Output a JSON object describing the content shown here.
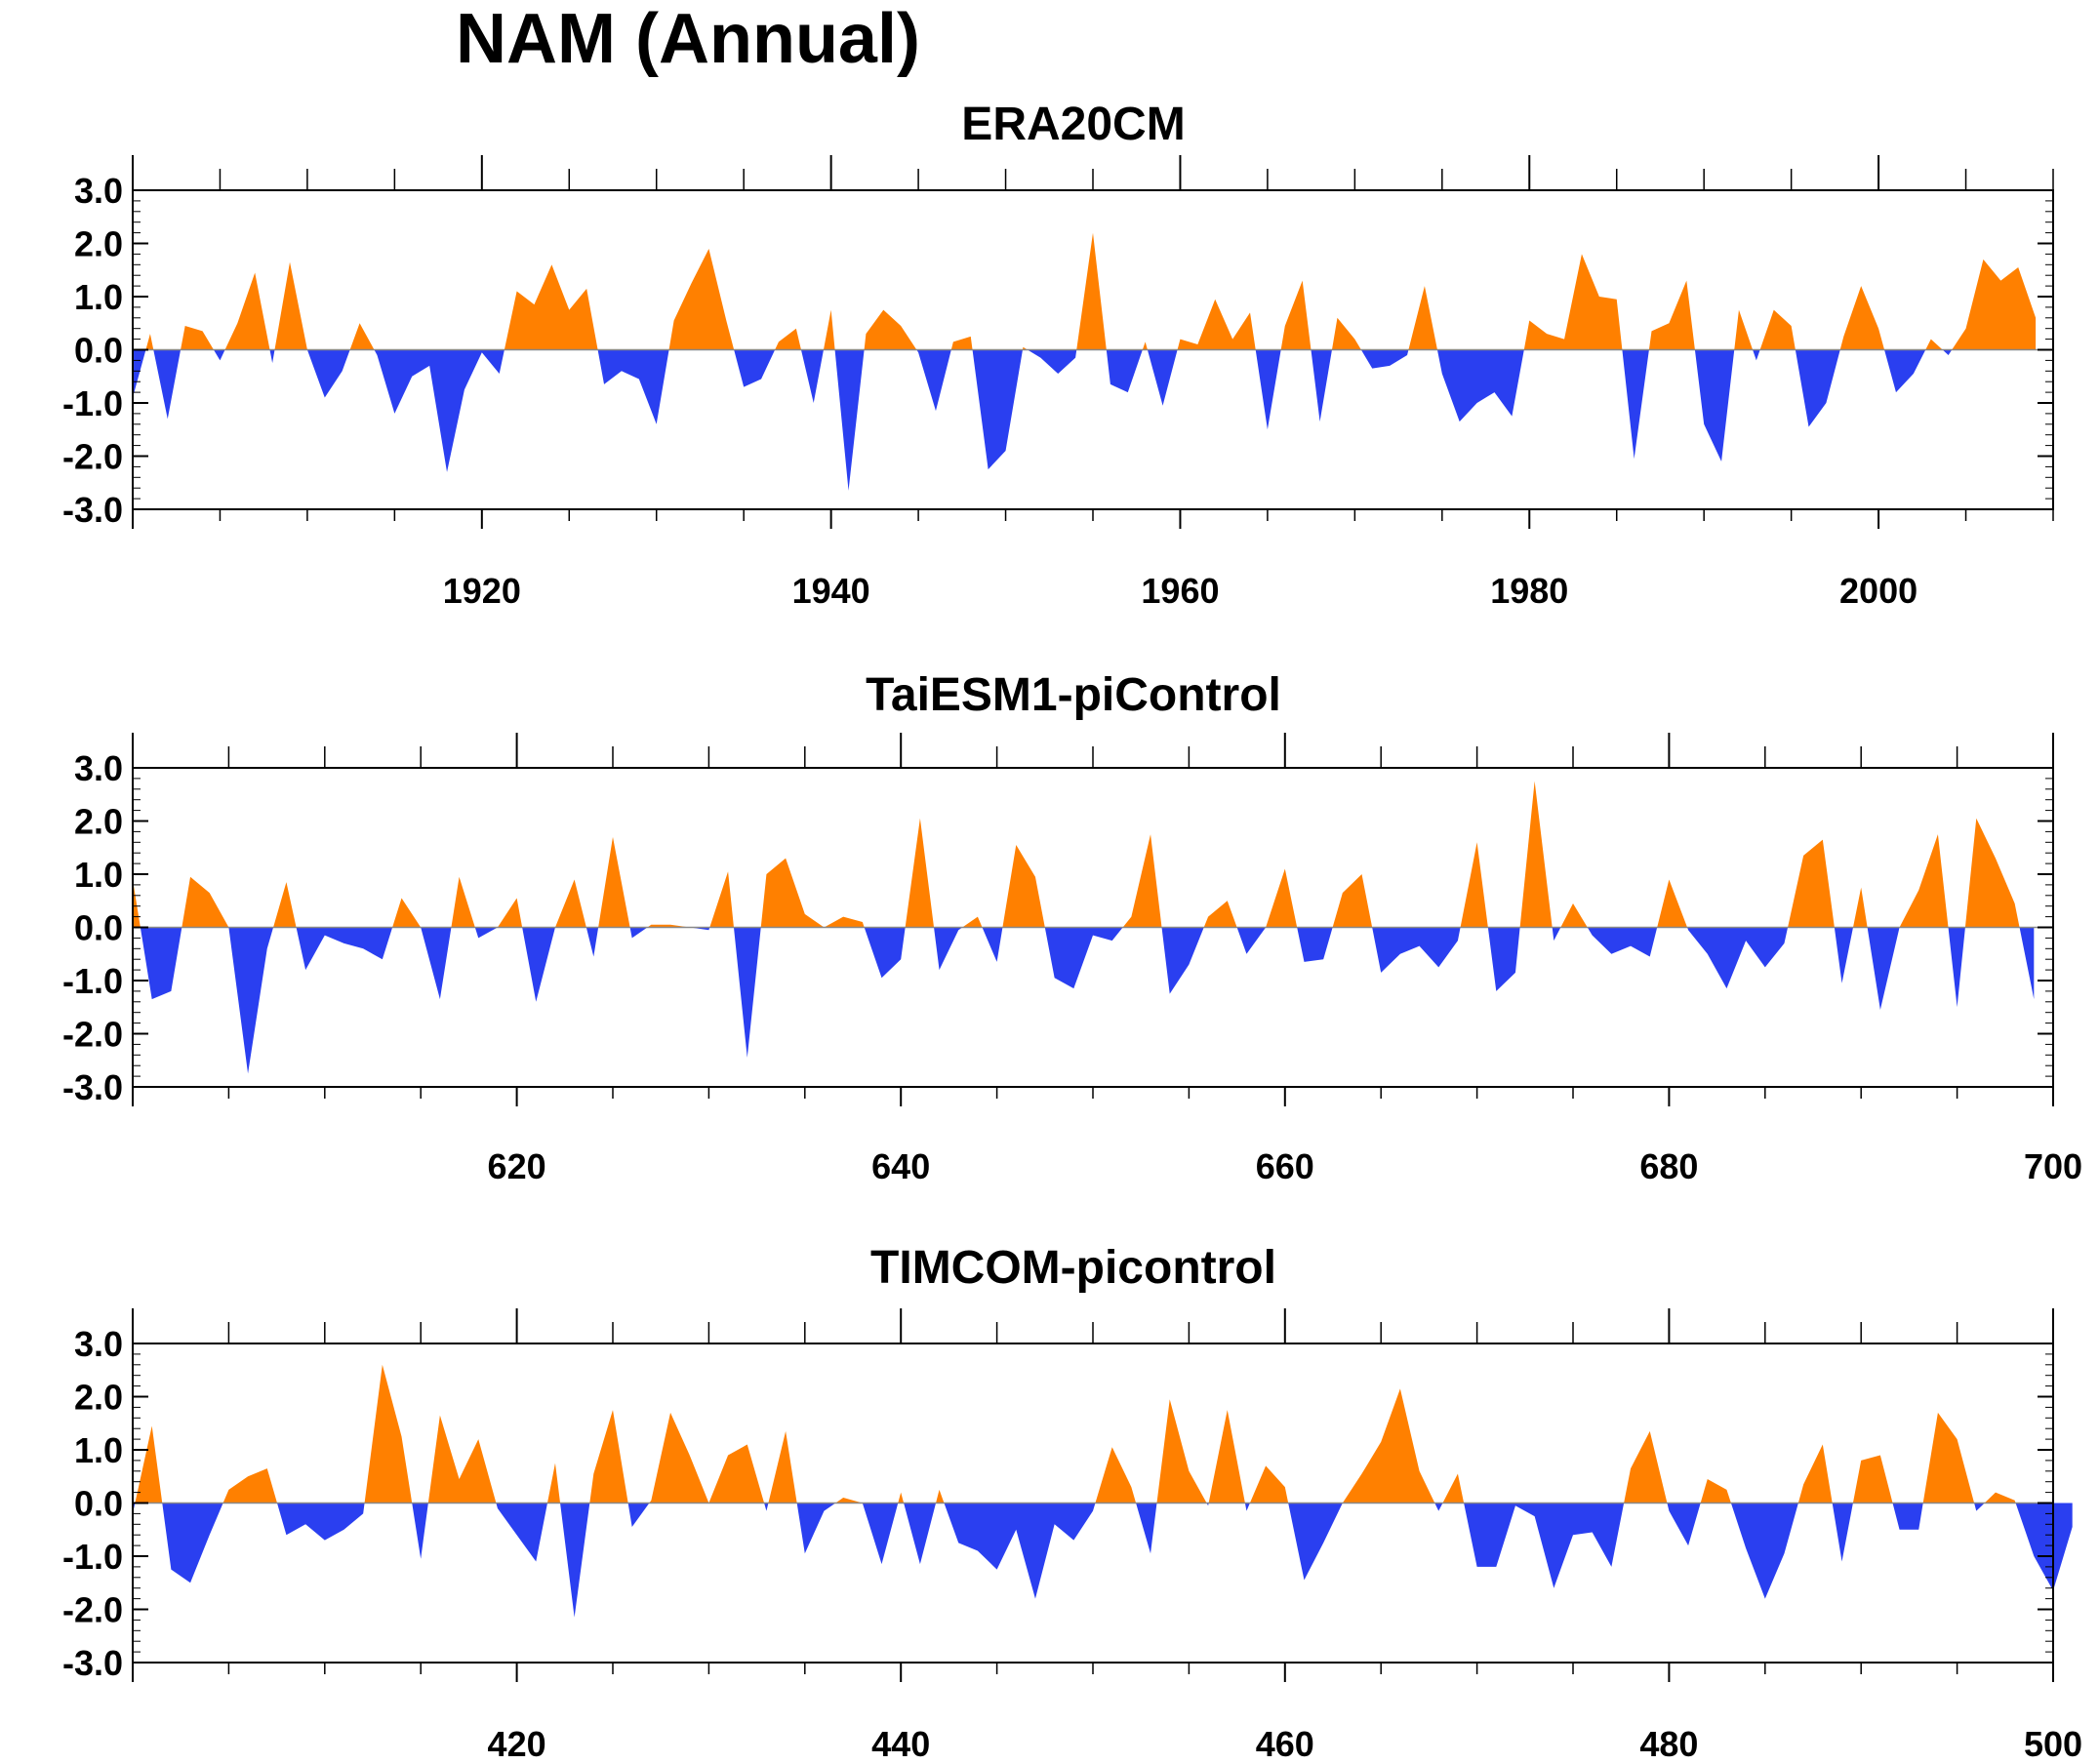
{
  "title": "NAM (Annual)",
  "colors": {
    "positive": "#ff8000",
    "negative": "#2a3ff0",
    "axis": "#000000"
  },
  "chart_data": [
    {
      "type": "area",
      "title": "ERA20CM",
      "xlabel": "",
      "ylabel": "",
      "ylim": [
        -3.0,
        3.0
      ],
      "yticks": [
        "3.0",
        "2.0",
        "1.0",
        "0.0",
        "-1.0",
        "-2.0",
        "-3.0"
      ],
      "xlim": [
        1900,
        2010
      ],
      "xticks": [
        1920,
        1940,
        1960,
        1980,
        2000
      ],
      "x_start": 1900,
      "values": [
        -0.9,
        0.3,
        -1.3,
        0.45,
        0.35,
        -0.2,
        0.5,
        1.45,
        -0.25,
        1.65,
        0.0,
        -0.9,
        -0.4,
        0.5,
        -0.1,
        -1.2,
        -0.5,
        -0.3,
        -2.3,
        -0.75,
        -0.05,
        -0.45,
        1.1,
        0.85,
        1.6,
        0.75,
        1.15,
        -0.65,
        -0.4,
        -0.55,
        -1.4,
        0.55,
        1.25,
        1.9,
        0.55,
        -0.7,
        -0.55,
        0.15,
        0.4,
        -1.0,
        0.75,
        -2.65,
        0.3,
        0.75,
        0.45,
        -0.05,
        -1.15,
        0.15,
        0.25,
        -2.25,
        -1.9,
        0.05,
        -0.15,
        -0.45,
        -0.15,
        2.2,
        -0.65,
        -0.8,
        0.15,
        -1.05,
        0.2,
        0.1,
        0.95,
        0.2,
        0.7,
        -1.5,
        0.45,
        1.3,
        -1.35,
        0.6,
        0.2,
        -0.35,
        -0.3,
        -0.1,
        1.2,
        -0.45,
        -1.35,
        -1.0,
        -0.8,
        -1.25,
        0.55,
        0.3,
        0.2,
        1.8,
        1.0,
        0.95,
        -2.05,
        0.35,
        0.5,
        1.3,
        -1.4,
        -2.1,
        0.75,
        -0.2,
        0.75,
        0.45,
        -1.45,
        -1.0,
        0.25,
        1.2,
        0.4,
        -0.8,
        -0.45,
        0.2,
        -0.1,
        0.4,
        1.7,
        1.3,
        1.55,
        0.6
      ]
    },
    {
      "type": "area",
      "title": "TaiESM1-piControl",
      "xlabel": "",
      "ylabel": "",
      "ylim": [
        -3.0,
        3.0
      ],
      "yticks": [
        "3.0",
        "2.0",
        "1.0",
        "0.0",
        "-1.0",
        "-2.0",
        "-3.0"
      ],
      "xlim": [
        600,
        700
      ],
      "xticks": [
        620,
        640,
        660,
        680,
        700
      ],
      "x_start": 600,
      "values": [
        0.9,
        -1.35,
        -1.2,
        0.95,
        0.65,
        0.0,
        -2.75,
        -0.4,
        0.85,
        -0.8,
        -0.15,
        -0.3,
        -0.4,
        -0.6,
        0.55,
        0.0,
        -1.35,
        0.95,
        -0.2,
        0.0,
        0.55,
        -1.4,
        0.0,
        0.9,
        -0.55,
        1.7,
        -0.2,
        0.05,
        0.05,
        0.0,
        -0.05,
        1.05,
        -2.45,
        1.0,
        1.3,
        0.25,
        0.0,
        0.2,
        0.1,
        -0.95,
        -0.6,
        2.05,
        -0.8,
        -0.05,
        0.2,
        -0.65,
        1.55,
        0.95,
        -0.95,
        -1.15,
        -0.15,
        -0.25,
        0.2,
        1.75,
        -1.25,
        -0.7,
        0.2,
        0.5,
        -0.5,
        0.0,
        1.1,
        -0.65,
        -0.6,
        0.65,
        1.0,
        -0.85,
        -0.5,
        -0.35,
        -0.75,
        -0.25,
        1.6,
        -1.2,
        -0.85,
        2.75,
        -0.25,
        0.45,
        -0.15,
        -0.5,
        -0.35,
        -0.55,
        0.9,
        -0.05,
        -0.5,
        -1.15,
        -0.25,
        -0.75,
        -0.3,
        1.35,
        1.65,
        -1.05,
        0.75,
        -1.55,
        0.0,
        0.7,
        1.75,
        -1.5,
        2.05,
        1.3,
        0.45,
        -1.35
      ]
    },
    {
      "type": "area",
      "title": "TIMCOM-picontrol",
      "xlabel": "",
      "ylabel": "",
      "ylim": [
        -3.0,
        3.0
      ],
      "yticks": [
        "3.0",
        "2.0",
        "1.0",
        "0.0",
        "-1.0",
        "-2.0",
        "-3.0"
      ],
      "xlim": [
        400,
        500
      ],
      "xticks": [
        420,
        440,
        460,
        480,
        500
      ],
      "x_start": 400,
      "values": [
        -0.2,
        1.45,
        -1.25,
        -1.5,
        -0.6,
        0.25,
        0.5,
        0.65,
        -0.6,
        -0.4,
        -0.7,
        -0.5,
        -0.2,
        2.6,
        1.25,
        -1.05,
        1.65,
        0.45,
        1.2,
        -0.1,
        -0.6,
        -1.1,
        0.75,
        -2.15,
        0.55,
        1.75,
        -0.45,
        0.05,
        1.7,
        0.9,
        0.0,
        0.9,
        1.1,
        -0.15,
        1.35,
        -0.95,
        -0.15,
        0.1,
        0.0,
        -1.15,
        0.2,
        -1.15,
        0.25,
        -0.75,
        -0.9,
        -1.25,
        -0.5,
        -1.8,
        -0.4,
        -0.7,
        -0.15,
        1.05,
        0.3,
        -0.95,
        1.95,
        0.6,
        -0.05,
        1.75,
        -0.15,
        0.7,
        0.3,
        -1.45,
        -0.75,
        0.0,
        0.55,
        1.15,
        2.15,
        0.6,
        -0.15,
        0.55,
        -1.2,
        -1.2,
        -0.05,
        -0.25,
        -1.6,
        -0.6,
        -0.55,
        -1.2,
        0.65,
        1.35,
        -0.15,
        -0.8,
        0.45,
        0.25,
        -0.85,
        -1.8,
        -0.95,
        0.35,
        1.1,
        -1.1,
        0.8,
        0.9,
        -0.5,
        -0.5,
        1.7,
        1.2,
        -0.15,
        0.2,
        0.05,
        -1.0,
        -1.65,
        -0.45
      ]
    }
  ]
}
